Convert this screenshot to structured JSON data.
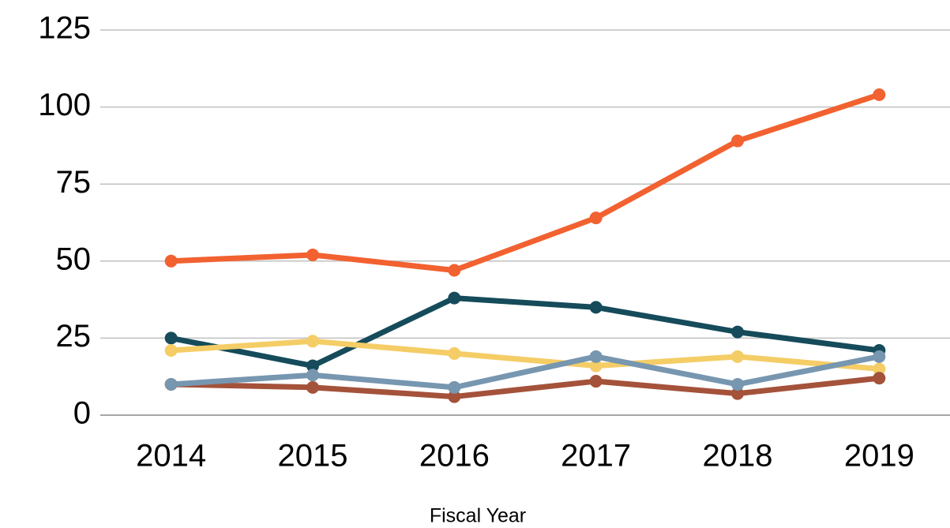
{
  "chart_data": {
    "type": "line",
    "categories": [
      "2014",
      "2015",
      "2016",
      "2017",
      "2018",
      "2019"
    ],
    "x_label": "Fiscal Year",
    "series": [
      {
        "color": "#f26130",
        "values": [
          50,
          52,
          47,
          64,
          89,
          104
        ]
      },
      {
        "color": "#154b5a",
        "values": [
          25,
          16,
          38,
          35,
          27,
          21
        ]
      },
      {
        "color": "#f5cd66",
        "values": [
          21,
          24,
          20,
          16,
          19,
          15
        ]
      },
      {
        "color": "#a4523a",
        "values": [
          10,
          9,
          6,
          11,
          7,
          12
        ]
      },
      {
        "color": "#7796b0",
        "values": [
          10,
          13,
          9,
          19,
          10,
          19
        ]
      }
    ],
    "ylim": [
      0,
      125
    ],
    "yticks": [
      0,
      25,
      50,
      75,
      100,
      125
    ],
    "grid": true
  }
}
